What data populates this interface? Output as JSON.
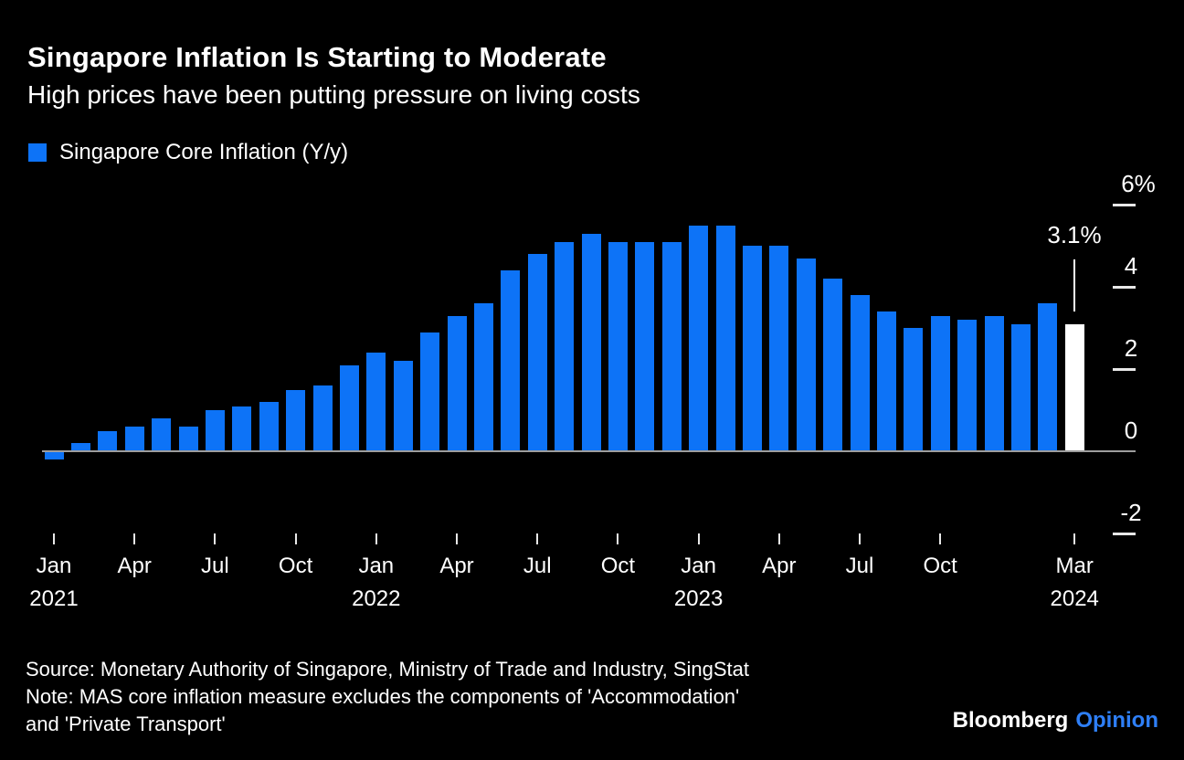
{
  "header": {
    "title": "Singapore Inflation Is Starting to Moderate",
    "subtitle": "High prices have been putting pressure on living costs"
  },
  "legend": {
    "label": "Singapore Core Inflation (Y/y)",
    "color": "#0d73f7"
  },
  "chart_data": {
    "type": "bar",
    "title": "Singapore Inflation Is Starting to Moderate",
    "subtitle": "High prices have been putting pressure on living costs",
    "series_name": "Singapore Core Inflation (Y/y)",
    "unit": "%",
    "grid": false,
    "legend_position": "top-left",
    "y_axis_side": "right",
    "ylim": [
      -2.8,
      6.4
    ],
    "categories": [
      "Jan 2021",
      "Feb 2021",
      "Mar 2021",
      "Apr 2021",
      "May 2021",
      "Jun 2021",
      "Jul 2021",
      "Aug 2021",
      "Sep 2021",
      "Oct 2021",
      "Nov 2021",
      "Dec 2021",
      "Jan 2022",
      "Feb 2022",
      "Mar 2022",
      "Apr 2022",
      "May 2022",
      "Jun 2022",
      "Jul 2022",
      "Aug 2022",
      "Sep 2022",
      "Oct 2022",
      "Nov 2022",
      "Dec 2022",
      "Jan 2023",
      "Feb 2023",
      "Mar 2023",
      "Apr 2023",
      "May 2023",
      "Jun 2023",
      "Jul 2023",
      "Aug 2023",
      "Sep 2023",
      "Oct 2023",
      "Nov 2023",
      "Dec 2023",
      "Jan 2024",
      "Feb 2024",
      "Mar 2024"
    ],
    "values": [
      -0.2,
      0.2,
      0.5,
      0.6,
      0.8,
      0.6,
      1.0,
      1.1,
      1.2,
      1.5,
      1.6,
      2.1,
      2.4,
      2.2,
      2.9,
      3.3,
      3.6,
      4.4,
      4.8,
      5.1,
      5.3,
      5.1,
      5.1,
      5.1,
      5.5,
      5.5,
      5.0,
      5.0,
      4.7,
      4.2,
      3.8,
      3.4,
      3.0,
      3.3,
      3.2,
      3.3,
      3.1,
      3.6,
      3.1
    ],
    "bar_color": "#0d73f7",
    "highlight": {
      "category": "Mar 2024",
      "index": 38,
      "value": 3.1,
      "label": "3.1%",
      "bar_color": "#ffffff"
    },
    "yticks": [
      {
        "label": "6%",
        "value": 6
      },
      {
        "label": "4",
        "value": 4
      },
      {
        "label": "2",
        "value": 2
      },
      {
        "label": "0",
        "value": 0
      },
      {
        "label": "-2",
        "value": -2
      }
    ],
    "xticks": [
      {
        "index": 0,
        "label": "Jan",
        "year": "2021"
      },
      {
        "index": 3,
        "label": "Apr"
      },
      {
        "index": 6,
        "label": "Jul"
      },
      {
        "index": 9,
        "label": "Oct"
      },
      {
        "index": 12,
        "label": "Jan",
        "year": "2022"
      },
      {
        "index": 15,
        "label": "Apr"
      },
      {
        "index": 18,
        "label": "Jul"
      },
      {
        "index": 21,
        "label": "Oct"
      },
      {
        "index": 24,
        "label": "Jan",
        "year": "2023"
      },
      {
        "index": 27,
        "label": "Apr"
      },
      {
        "index": 30,
        "label": "Jul"
      },
      {
        "index": 33,
        "label": "Oct"
      },
      {
        "index": 38,
        "label": "Mar",
        "year": "2024"
      }
    ]
  },
  "footer": {
    "source": "Source: Monetary Authority of Singapore, Ministry of Trade and Industry, SingStat",
    "note_line1": "Note: MAS core inflation measure excludes the components of 'Accommodation'",
    "note_line2": "and 'Private Transport'"
  },
  "logo": {
    "brand": "Bloomberg",
    "suffix": "Opinion",
    "suffix_color": "#2e7ff7"
  }
}
